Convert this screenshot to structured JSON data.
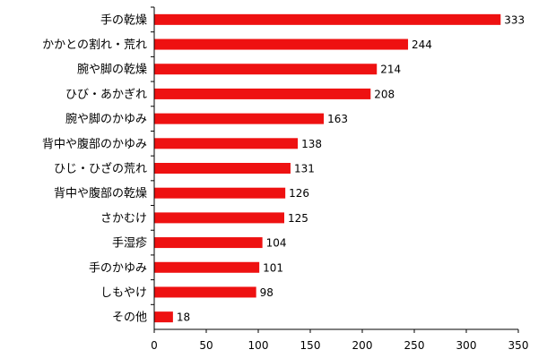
{
  "chart_data": {
    "type": "bar",
    "orientation": "horizontal",
    "categories": [
      "手の乾燥",
      "かかとの割れ・荒れ",
      "腕や脚の乾燥",
      "ひび・あかぎれ",
      "腕や脚のかゆみ",
      "背中や腹部のかゆみ",
      "ひじ・ひざの荒れ",
      "背中や腹部の乾燥",
      "さかむけ",
      "手湿疹",
      "手のかゆみ",
      "しもやけ",
      "その他"
    ],
    "values": [
      333,
      244,
      214,
      208,
      163,
      138,
      131,
      126,
      125,
      104,
      101,
      98,
      18
    ],
    "xlim": [
      0,
      350
    ],
    "xticks": [
      "0",
      "50",
      "100",
      "150",
      "200",
      "250",
      "300",
      "350"
    ],
    "bar_color": "#ee1111",
    "title": "",
    "xlabel": "",
    "ylabel": "",
    "grid": false
  }
}
